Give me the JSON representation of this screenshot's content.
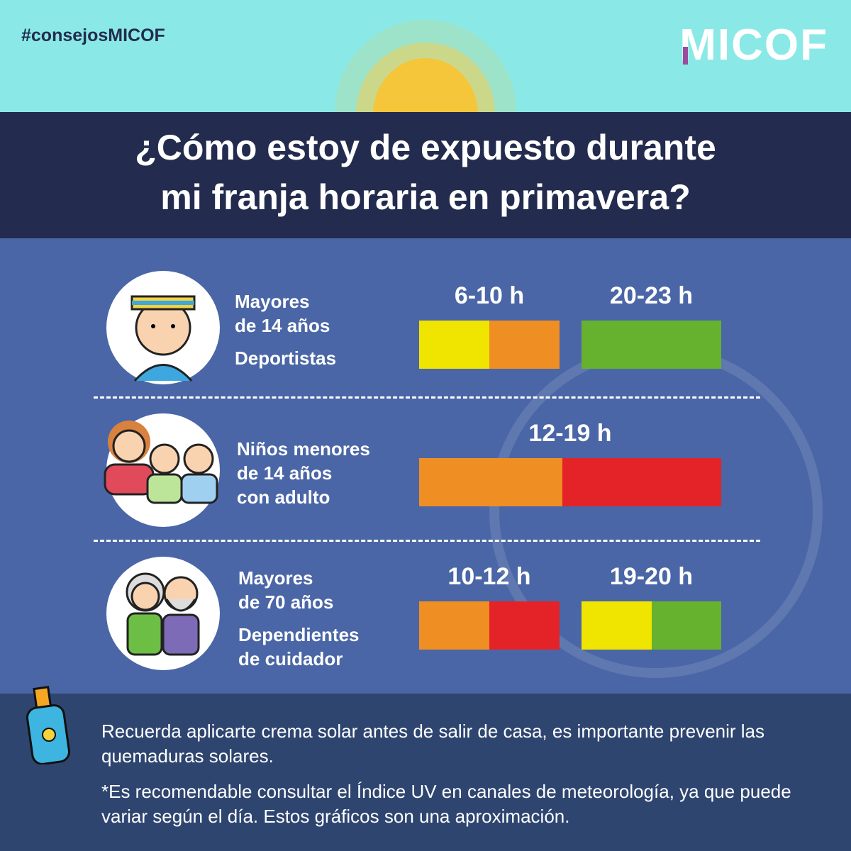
{
  "header": {
    "hashtag": "#consejosMICOF",
    "logo": "MICOF"
  },
  "title": {
    "line1": "¿Cómo estoy de expuesto durante",
    "line2": "mi franja horaria en primavera?"
  },
  "colors": {
    "yellow": "#F0E500",
    "orange": "#EF8E22",
    "green": "#66B22F",
    "red": "#E42328"
  },
  "groups": [
    {
      "label_lines": [
        "Mayores",
        "de 14 años"
      ],
      "sub_label": "Deportistas",
      "icon": "athlete-icon",
      "slots": [
        {
          "time": "6-10 h",
          "segments": [
            "yellow",
            "orange"
          ]
        },
        {
          "time": "20-23 h",
          "segments": [
            "green"
          ]
        }
      ]
    },
    {
      "label_lines": [
        "Niños menores",
        "de 14 años",
        "con adulto"
      ],
      "icon": "family-icon",
      "slots": [
        {
          "time": "12-19 h",
          "segments": [
            "orange",
            "red"
          ]
        }
      ]
    },
    {
      "label_lines": [
        "Mayores",
        "de 70 años"
      ],
      "sub_label_lines": [
        "Dependientes",
        "de cuidador"
      ],
      "icon": "elderly-couple-icon",
      "slots": [
        {
          "time": "10-12 h",
          "segments": [
            "orange",
            "red"
          ]
        },
        {
          "time": "19-20 h",
          "segments": [
            "yellow",
            "green"
          ]
        }
      ]
    }
  ],
  "footer": {
    "note": "Recuerda aplicarte crema solar antes de salir de casa, es importante prevenir las quemaduras solares.",
    "disclaimer": "*Es recomendable consultar el Índice UV en canales de meteorología, ya que puede variar según el día. Estos gráficos son una aproximación."
  }
}
